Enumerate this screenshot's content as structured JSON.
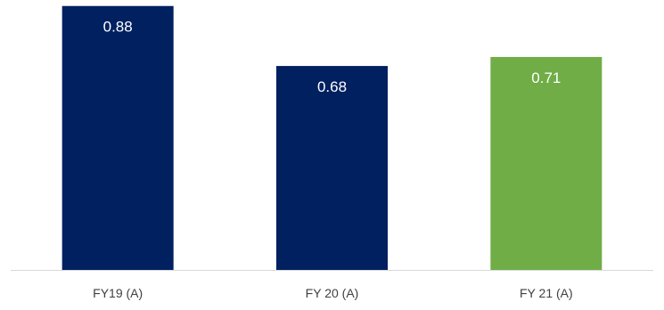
{
  "chart_data": {
    "type": "bar",
    "categories": [
      "FY19 (A)",
      "FY 20 (A)",
      "FY 21 (A)"
    ],
    "values": [
      0.88,
      0.68,
      0.71
    ],
    "value_labels": [
      "0.88",
      "0.68",
      "0.71"
    ],
    "bar_colors": [
      "#002060",
      "#002060",
      "#70AD47"
    ],
    "title": "",
    "xlabel": "",
    "ylabel": "",
    "ylim": [
      0,
      0.9
    ],
    "grid": false,
    "legend": "none"
  },
  "colors": {
    "axis": "#d9d9d9",
    "data_label": "#ffffff",
    "category_label": "#404040"
  }
}
